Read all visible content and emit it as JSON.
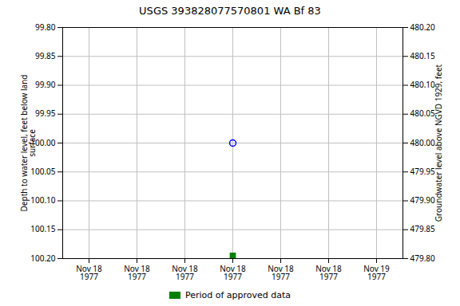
{
  "chart_data": {
    "type": "scatter",
    "title": "USGS 393828077570801 WA Bf  83",
    "y_label": "Depth to water level, feet below land\nsurface",
    "y2_label": "Groundwater level above NGVD 1929, feet",
    "categories": [
      "Nov 18\n1977",
      "Nov 18\n1977",
      "Nov 18\n1977",
      "Nov 18\n1977",
      "Nov 18\n1977",
      "Nov 18\n1977",
      "Nov 19\n1977"
    ],
    "series": [
      {
        "color": "#0000ff",
        "marker": "circle",
        "values": [
          null,
          null,
          null,
          100.0,
          null,
          null,
          null
        ]
      },
      {
        "name": "Period of approved data",
        "color": "#008000",
        "marker": "square",
        "values": [
          null,
          null,
          null,
          100.195,
          null,
          null,
          null
        ]
      }
    ],
    "ylim": [
      100.2,
      99.8
    ],
    "yticks": [
      {
        "value": 99.8,
        "label": "99.80"
      },
      {
        "value": 99.85,
        "label": "99.85"
      },
      {
        "value": 99.9,
        "label": "99.90"
      },
      {
        "value": 99.95,
        "label": "99.95"
      },
      {
        "value": 100.0,
        "label": "100.00"
      },
      {
        "value": 100.05,
        "label": "100.05"
      },
      {
        "value": 100.1,
        "label": "100.10"
      },
      {
        "value": 100.15,
        "label": "100.15"
      },
      {
        "value": 100.2,
        "label": "100.20"
      }
    ],
    "y2lim": [
      479.8,
      480.2
    ],
    "y2ticks": [
      {
        "value": 479.8,
        "label": "479.80"
      },
      {
        "value": 479.85,
        "label": "479.85"
      },
      {
        "value": 479.9,
        "label": "479.90"
      },
      {
        "value": 479.95,
        "label": "479.95"
      },
      {
        "value": 480.0,
        "label": "480.00"
      },
      {
        "value": 480.05,
        "label": "480.05"
      },
      {
        "value": 480.1,
        "label": "480.10"
      },
      {
        "value": 480.15,
        "label": "480.15"
      },
      {
        "value": 480.2,
        "label": "480.20"
      }
    ],
    "grid": true,
    "legend": "bottom"
  }
}
